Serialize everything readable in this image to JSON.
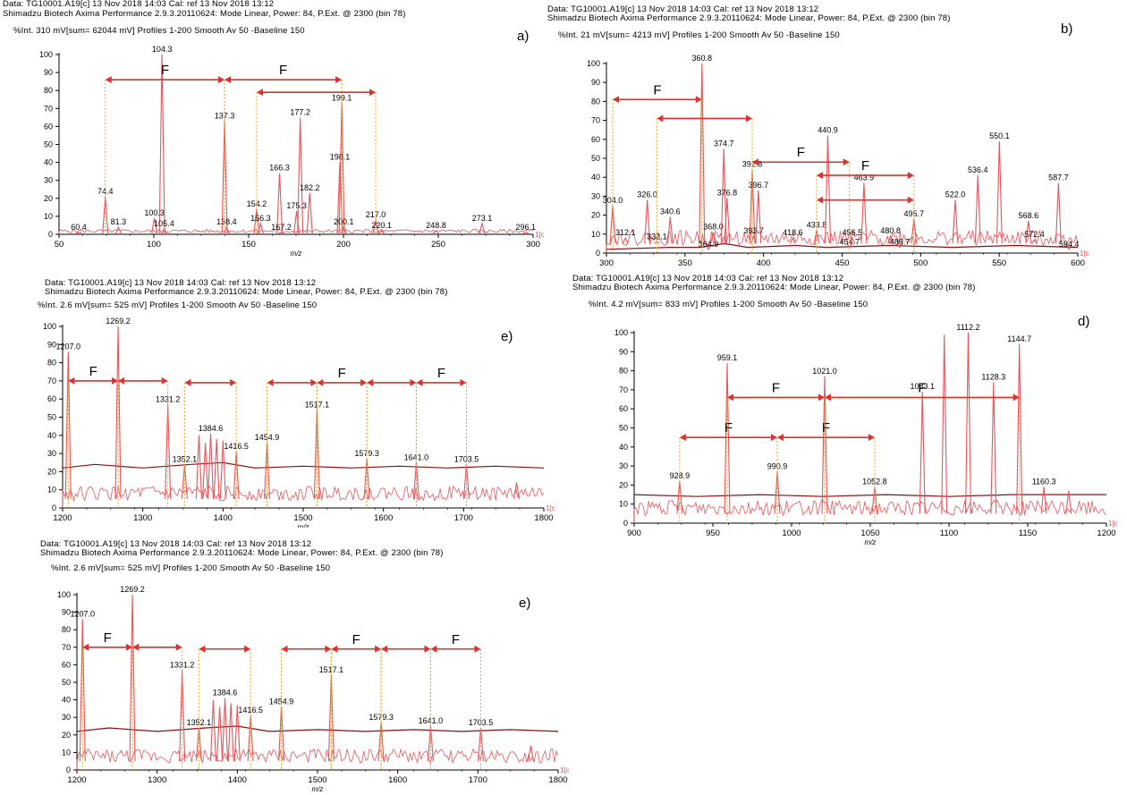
{
  "chart_data": [
    {
      "id": "a",
      "type": "line",
      "label": "a)",
      "header": {
        "line1": "Data: TG10001.A19[c] 13 Nov 2018 14:03 Cal: ref 13 Nov 2018 13:12",
        "line2": "Shimadzu Biotech Axima Performance 2.9.3.20110624: Mode Linear, Power: 84, P.Ext. @ 2300 (bin 78)",
        "line3": "%Int.      310 mV[sum= 62044 mV]  Profiles 1-200 Smooth Av 50 -Baseline 150"
      },
      "xlabel": "m/z",
      "xlim": [
        50,
        300
      ],
      "ylim": [
        0,
        100
      ],
      "xticks": [
        "50",
        "100",
        "150",
        "200",
        "250",
        "300"
      ],
      "yticks": [
        "0",
        "10",
        "20",
        "30",
        "40",
        "50",
        "60",
        "70",
        "80",
        "90",
        "100"
      ],
      "x_suffix": "1[c",
      "peaks": [
        {
          "x": 60.4,
          "y": 1,
          "label": "60.4"
        },
        {
          "x": 74.4,
          "y": 21,
          "label": "74.4"
        },
        {
          "x": 81.3,
          "y": 4,
          "label": "81.3"
        },
        {
          "x": 100.3,
          "y": 9,
          "label": "100.3"
        },
        {
          "x": 104.3,
          "y": 100,
          "label": "104.3"
        },
        {
          "x": 105.4,
          "y": 3,
          "label": "105.4"
        },
        {
          "x": 137.3,
          "y": 63,
          "label": "137.3"
        },
        {
          "x": 138.4,
          "y": 4,
          "label": "138.4"
        },
        {
          "x": 154.2,
          "y": 14,
          "label": "154.2"
        },
        {
          "x": 156.3,
          "y": 6,
          "label": "156.3"
        },
        {
          "x": 166.3,
          "y": 34,
          "label": "166.3"
        },
        {
          "x": 167.2,
          "y": 1,
          "label": "167.2"
        },
        {
          "x": 175.3,
          "y": 13,
          "label": "175.3"
        },
        {
          "x": 177.2,
          "y": 65,
          "label": "177.2"
        },
        {
          "x": 182.2,
          "y": 23,
          "label": "182.2"
        },
        {
          "x": 198.1,
          "y": 40,
          "label": "198.1"
        },
        {
          "x": 199.1,
          "y": 73,
          "label": "199.1"
        },
        {
          "x": 200.1,
          "y": 4,
          "label": "200.1"
        },
        {
          "x": 217.0,
          "y": 8,
          "label": "217.0"
        },
        {
          "x": 220.1,
          "y": 2,
          "label": "220.1"
        },
        {
          "x": 248.8,
          "y": 2,
          "label": "248.8"
        },
        {
          "x": 273.1,
          "y": 6,
          "label": "273.1"
        },
        {
          "x": 296.1,
          "y": 1,
          "label": "296.1"
        }
      ],
      "baseline": [],
      "arrows": [
        {
          "x1": 74.4,
          "x2": 137.3,
          "y": 86,
          "f": true
        },
        {
          "x1": 137.3,
          "x2": 199.1,
          "y": 86,
          "f": true
        },
        {
          "x1": 154.2,
          "x2": 217.0,
          "y": 79,
          "f": false
        }
      ]
    },
    {
      "id": "b",
      "type": "line",
      "label": "b)",
      "header": {
        "line1": "Data: TG10001.A19[c] 13 Nov 2018 14:03 Cal: ref 13 Nov 2018 13:12",
        "line2": "Shimadzu Biotech Axima Performance 2.9.3.20110624: Mode Linear, Power: 84, P.Ext. @ 2300 (bin 78)",
        "line3": "%Int.      21 mV[sum= 4213 mV]  Profiles 1-200 Smooth Av 50 -Baseline 150"
      },
      "xlabel": "",
      "xlim": [
        300,
        600
      ],
      "ylim": [
        0,
        100
      ],
      "xticks": [
        "300",
        "350",
        "400",
        "450",
        "500",
        "550",
        "600"
      ],
      "yticks": [
        "0",
        "10",
        "20",
        "30",
        "40",
        "50",
        "60",
        "70",
        "80",
        "90",
        "100"
      ],
      "x_suffix": "1[c",
      "peaks": [
        {
          "x": 304.0,
          "y": 25,
          "label": "304.0"
        },
        {
          "x": 312.1,
          "y": 8,
          "label": "312.1"
        },
        {
          "x": 326.0,
          "y": 28,
          "label": "326.0"
        },
        {
          "x": 332.1,
          "y": 6,
          "label": "332.1"
        },
        {
          "x": 340.6,
          "y": 19,
          "label": "340.6"
        },
        {
          "x": 360.8,
          "y": 100,
          "label": "360.8"
        },
        {
          "x": 364.9,
          "y": 2,
          "label": "364.9"
        },
        {
          "x": 368.0,
          "y": 11,
          "label": "368.0"
        },
        {
          "x": 374.7,
          "y": 55,
          "label": "374.7"
        },
        {
          "x": 376.8,
          "y": 29,
          "label": "376.8"
        },
        {
          "x": 392.8,
          "y": 44,
          "label": "392.8"
        },
        {
          "x": 393.7,
          "y": 9,
          "label": "393.7"
        },
        {
          "x": 396.7,
          "y": 33,
          "label": "396.7"
        },
        {
          "x": 418.6,
          "y": 8,
          "label": "418.6"
        },
        {
          "x": 433.8,
          "y": 12,
          "label": "433.8"
        },
        {
          "x": 440.9,
          "y": 62,
          "label": "440.9"
        },
        {
          "x": 454.7,
          "y": 3,
          "label": "454.7"
        },
        {
          "x": 456.5,
          "y": 8,
          "label": "456.5"
        },
        {
          "x": 463.9,
          "y": 37,
          "label": "463.9"
        },
        {
          "x": 480.8,
          "y": 9,
          "label": "480.8"
        },
        {
          "x": 486.7,
          "y": 3,
          "label": "486.7"
        },
        {
          "x": 495.7,
          "y": 18,
          "label": "495.7"
        },
        {
          "x": 522.0,
          "y": 28,
          "label": "522.0"
        },
        {
          "x": 536.4,
          "y": 41,
          "label": "536.4"
        },
        {
          "x": 550.1,
          "y": 59,
          "label": "550.1"
        },
        {
          "x": 568.6,
          "y": 17,
          "label": "568.6"
        },
        {
          "x": 572.4,
          "y": 7,
          "label": "572.4"
        },
        {
          "x": 587.7,
          "y": 37,
          "label": "587.7"
        },
        {
          "x": 594.4,
          "y": 2,
          "label": "594.4"
        }
      ],
      "baseline": [
        [
          300,
          2
        ],
        [
          340,
          3
        ],
        [
          360,
          3
        ],
        [
          375,
          5
        ],
        [
          390,
          3
        ],
        [
          420,
          4
        ],
        [
          440,
          3
        ],
        [
          480,
          4
        ],
        [
          520,
          3
        ],
        [
          560,
          4
        ],
        [
          600,
          3
        ]
      ],
      "arrows": [
        {
          "x1": 304.0,
          "x2": 360.8,
          "y": 81,
          "f": true
        },
        {
          "x1": 332.1,
          "x2": 392.8,
          "y": 71,
          "f": false
        },
        {
          "x1": 392.8,
          "x2": 454.7,
          "y": 48,
          "f": true
        },
        {
          "x1": 433.8,
          "x2": 495.7,
          "y": 41,
          "f": true
        },
        {
          "x1": 433.8,
          "x2": 495.7,
          "y": 28,
          "f": false
        }
      ]
    },
    {
      "id": "e",
      "type": "line",
      "label": "e)",
      "header": {
        "line1": "Data: TG10001.A19[c] 13 Nov 2018 14:03 Cal: ref 13 Nov 2018 13:12",
        "line2": "Shimadzu Biotech Axima Performance 2.9.3.20110624: Mode Linear, Power: 84, P.Ext. @ 2300 (bin 78)",
        "line3": "%Int.      2.6 mV[sum= 525 mV]  Profiles 1-200 Smooth Av 50 -Baseline 150"
      },
      "xlabel": "m/z",
      "xlim": [
        1200,
        1800
      ],
      "ylim": [
        0,
        100
      ],
      "xticks": [
        "1200",
        "1300",
        "1400",
        "1500",
        "1600",
        "1700",
        "1800"
      ],
      "yticks": [
        "0",
        "10",
        "20",
        "30",
        "40",
        "50",
        "60",
        "70",
        "80",
        "90",
        "100"
      ],
      "x_suffix": "1[c",
      "peaks": [
        {
          "x": 1207.0,
          "y": 86,
          "label": "1207.0"
        },
        {
          "x": 1269.2,
          "y": 100,
          "label": "1269.2"
        },
        {
          "x": 1331.2,
          "y": 57,
          "label": "1331.2"
        },
        {
          "x": 1352.1,
          "y": 24,
          "label": "1352.1"
        },
        {
          "x": 1370.0,
          "y": 40,
          "label": ""
        },
        {
          "x": 1378.0,
          "y": 36,
          "label": ""
        },
        {
          "x": 1384.6,
          "y": 41,
          "label": "1384.6"
        },
        {
          "x": 1392.0,
          "y": 38,
          "label": ""
        },
        {
          "x": 1400.0,
          "y": 37,
          "label": ""
        },
        {
          "x": 1416.5,
          "y": 31,
          "label": "1416.5"
        },
        {
          "x": 1454.9,
          "y": 36,
          "label": "1454.9"
        },
        {
          "x": 1517.1,
          "y": 54,
          "label": "1517.1"
        },
        {
          "x": 1579.3,
          "y": 27,
          "label": "1579.3"
        },
        {
          "x": 1641.0,
          "y": 25,
          "label": "1641.0"
        },
        {
          "x": 1703.5,
          "y": 24,
          "label": "1703.5"
        },
        {
          "x": 1766.0,
          "y": 14,
          "label": ""
        }
      ],
      "baseline": [
        [
          1200,
          22
        ],
        [
          1240,
          24
        ],
        [
          1300,
          22
        ],
        [
          1360,
          24
        ],
        [
          1400,
          25
        ],
        [
          1440,
          22
        ],
        [
          1500,
          23
        ],
        [
          1560,
          22
        ],
        [
          1620,
          23
        ],
        [
          1680,
          22
        ],
        [
          1740,
          23
        ],
        [
          1800,
          22
        ]
      ],
      "arrows": [
        {
          "x1": 1207.0,
          "x2": 1269.2,
          "y": 70,
          "f": true
        },
        {
          "x1": 1269.2,
          "x2": 1331.2,
          "y": 70,
          "f": false
        },
        {
          "x1": 1352.1,
          "x2": 1416.5,
          "y": 69,
          "f": false
        },
        {
          "x1": 1454.9,
          "x2": 1517.1,
          "y": 69,
          "f": false
        },
        {
          "x1": 1517.1,
          "x2": 1579.3,
          "y": 69,
          "f": true
        },
        {
          "x1": 1579.3,
          "x2": 1641.0,
          "y": 69,
          "f": false
        },
        {
          "x1": 1641.0,
          "x2": 1703.5,
          "y": 69,
          "f": true
        }
      ]
    },
    {
      "id": "d",
      "type": "line",
      "label": "d)",
      "header": {
        "line1": "Data: TG10001.A19[c] 13 Nov 2018 14:03 Cal: ref 13 Nov 2018 13:12",
        "line2": "Shimadzu Biotech Axima Performance 2.9.3.20110624: Mode Linear, Power: 84, P.Ext. @ 2300 (bin 78)",
        "line3": "%Int.      4.2 mV[sum= 833 mV]  Profiles 1-200 Smooth Av 50 -Baseline 150"
      },
      "xlabel": "m/z",
      "xlim": [
        900,
        1200
      ],
      "ylim": [
        0,
        100
      ],
      "xticks": [
        "900",
        "950",
        "1000",
        "1050",
        "1100",
        "1150",
        "1200"
      ],
      "yticks": [
        "0",
        "10",
        "20",
        "30",
        "40",
        "50",
        "60",
        "70",
        "80",
        "90",
        "100"
      ],
      "x_suffix": "1[c",
      "peaks": [
        {
          "x": 928.9,
          "y": 22,
          "label": "928.9"
        },
        {
          "x": 959.1,
          "y": 84,
          "label": "959.1"
        },
        {
          "x": 990.9,
          "y": 27,
          "label": "990.9"
        },
        {
          "x": 1021.0,
          "y": 77,
          "label": "1021.0"
        },
        {
          "x": 1052.8,
          "y": 19,
          "label": "1052.8"
        },
        {
          "x": 1083.1,
          "y": 69,
          "label": "1083.1"
        },
        {
          "x": 1097.0,
          "y": 99,
          "label": ""
        },
        {
          "x": 1112.2,
          "y": 100,
          "label": "1112.2"
        },
        {
          "x": 1128.3,
          "y": 74,
          "label": "1128.3"
        },
        {
          "x": 1144.7,
          "y": 94,
          "label": "1144.7"
        },
        {
          "x": 1160.3,
          "y": 19,
          "label": "1160.3"
        },
        {
          "x": 1176.0,
          "y": 17,
          "label": ""
        }
      ],
      "baseline": [
        [
          900,
          15
        ],
        [
          940,
          14
        ],
        [
          980,
          15
        ],
        [
          1020,
          14
        ],
        [
          1060,
          15
        ],
        [
          1100,
          14
        ],
        [
          1140,
          15
        ],
        [
          1200,
          15
        ]
      ],
      "arrows": [
        {
          "x1": 928.9,
          "x2": 990.9,
          "y": 45,
          "f": true
        },
        {
          "x1": 990.9,
          "x2": 1052.8,
          "y": 45,
          "f": true
        },
        {
          "x1": 959.1,
          "x2": 1021.0,
          "y": 66,
          "f": true
        },
        {
          "x1": 1021.0,
          "x2": 1144.7,
          "y": 66,
          "f": true
        }
      ]
    },
    {
      "id": "e2",
      "type": "line",
      "label": "e)",
      "header": {
        "line1": "Data: TG10001.A19[c] 13 Nov 2018 14:03 Cal: ref 13 Nov 2018 13:12",
        "line2": "Shimadzu Biotech Axima Performance 2.9.3.20110624: Mode Linear, Power: 84, P.Ext. @ 2300 (bin 78)",
        "line3": "%Int.      2.6 mV[sum= 525 mV]  Profiles 1-200 Smooth Av 50 -Baseline 150"
      },
      "xlabel": "m/z",
      "xlim": [
        1200,
        1800
      ],
      "ylim": [
        0,
        100
      ],
      "xticks": [
        "1200",
        "1300",
        "1400",
        "1500",
        "1600",
        "1700",
        "1800"
      ],
      "yticks": [
        "0",
        "10",
        "20",
        "30",
        "40",
        "50",
        "60",
        "70",
        "80",
        "90",
        "100"
      ],
      "x_suffix": "1[c",
      "peaks": [
        {
          "x": 1207.0,
          "y": 86,
          "label": "1207.0"
        },
        {
          "x": 1269.2,
          "y": 100,
          "label": "1269.2"
        },
        {
          "x": 1331.2,
          "y": 57,
          "label": "1331.2"
        },
        {
          "x": 1352.1,
          "y": 24,
          "label": "1352.1"
        },
        {
          "x": 1370.0,
          "y": 40,
          "label": ""
        },
        {
          "x": 1378.0,
          "y": 36,
          "label": ""
        },
        {
          "x": 1384.6,
          "y": 41,
          "label": "1384.6"
        },
        {
          "x": 1392.0,
          "y": 38,
          "label": ""
        },
        {
          "x": 1400.0,
          "y": 37,
          "label": ""
        },
        {
          "x": 1416.5,
          "y": 31,
          "label": "1416.5"
        },
        {
          "x": 1454.9,
          "y": 36,
          "label": "1454.9"
        },
        {
          "x": 1517.1,
          "y": 54,
          "label": "1517.1"
        },
        {
          "x": 1579.3,
          "y": 27,
          "label": "1579.3"
        },
        {
          "x": 1641.0,
          "y": 25,
          "label": "1641.0"
        },
        {
          "x": 1703.5,
          "y": 24,
          "label": "1703.5"
        },
        {
          "x": 1766.0,
          "y": 14,
          "label": ""
        }
      ],
      "baseline": [
        [
          1200,
          22
        ],
        [
          1240,
          24
        ],
        [
          1300,
          22
        ],
        [
          1360,
          24
        ],
        [
          1400,
          25
        ],
        [
          1440,
          22
        ],
        [
          1500,
          23
        ],
        [
          1560,
          22
        ],
        [
          1620,
          23
        ],
        [
          1680,
          22
        ],
        [
          1740,
          23
        ],
        [
          1800,
          22
        ]
      ],
      "arrows": [
        {
          "x1": 1207.0,
          "x2": 1269.2,
          "y": 70,
          "f": true
        },
        {
          "x1": 1269.2,
          "x2": 1331.2,
          "y": 70,
          "f": false
        },
        {
          "x1": 1352.1,
          "x2": 1416.5,
          "y": 69,
          "f": false
        },
        {
          "x1": 1454.9,
          "x2": 1517.1,
          "y": 69,
          "f": false
        },
        {
          "x1": 1517.1,
          "x2": 1579.3,
          "y": 69,
          "f": true
        },
        {
          "x1": 1579.3,
          "x2": 1641.0,
          "y": 69,
          "f": false
        },
        {
          "x1": 1641.0,
          "x2": 1703.5,
          "y": 69,
          "f": true
        }
      ]
    }
  ],
  "fragment_label": "F",
  "colors": {
    "spectrum": "#e8545a",
    "baseline": "#8b1010",
    "arrow": "#e0302c",
    "guide": "#e8a21c",
    "axis": "#000000"
  }
}
